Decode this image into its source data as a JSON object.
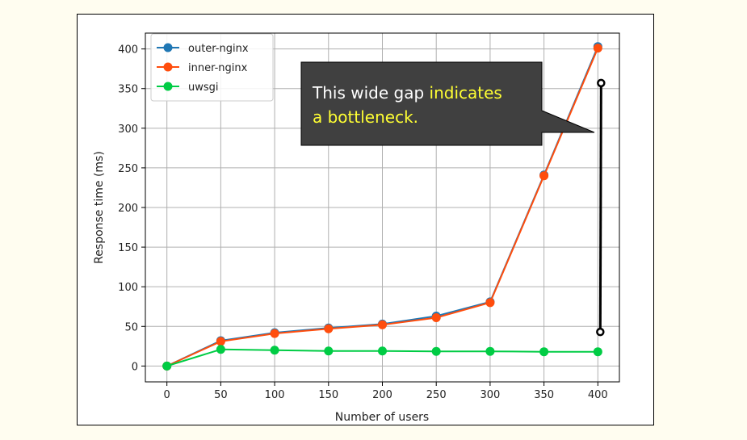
{
  "chart_data": {
    "type": "line",
    "title": "",
    "xlabel": "Number of users",
    "ylabel": "Response time (ms)",
    "x": [
      0,
      50,
      100,
      150,
      200,
      250,
      300,
      350,
      400
    ],
    "xticks": [
      0,
      50,
      100,
      150,
      200,
      250,
      300,
      350,
      400
    ],
    "yticks": [
      0,
      50,
      100,
      150,
      200,
      250,
      300,
      350,
      400
    ],
    "xlim": [
      -20,
      420
    ],
    "ylim": [
      -20,
      420
    ],
    "grid": true,
    "legend_position": "top-left",
    "series": [
      {
        "name": "outer-nginx",
        "color": "#1f77b4",
        "values": [
          0,
          32,
          42,
          48,
          53,
          63,
          81,
          241,
          403
        ]
      },
      {
        "name": "inner-nginx",
        "color": "#ff4d0d",
        "values": [
          0,
          31,
          41,
          47,
          52,
          61,
          80,
          240,
          401
        ]
      },
      {
        "name": "uwsgi",
        "color": "#00cc44",
        "values": [
          0,
          21,
          20,
          19,
          19,
          18.5,
          18.5,
          18,
          18
        ]
      }
    ],
    "annotation": {
      "text_plain": "This wide gap ",
      "text_highlight_1": "indicates",
      "text_highlight_2": "a bottleneck.",
      "plain_color": "#ffffff",
      "highlight_color": "#ffff33",
      "box_color": "#404040",
      "gap_x": 403,
      "gap_y_top": 357,
      "gap_y_bottom": 43
    }
  }
}
